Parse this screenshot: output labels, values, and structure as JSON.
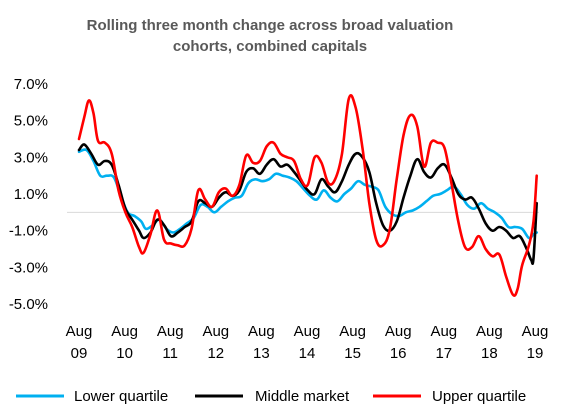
{
  "chart_data": {
    "type": "line",
    "title_lines": [
      "Rolling three month change across broad valuation",
      "cohorts, combined capitals"
    ],
    "xlabel": "",
    "ylabel": "",
    "ylim": [
      -5.0,
      7.0
    ],
    "y_ticks": [
      7.0,
      5.0,
      3.0,
      1.0,
      -1.0,
      -3.0,
      -5.0
    ],
    "y_tick_labels": [
      "7.0%",
      "5.0%",
      "3.0%",
      "1.0%",
      "-1.0%",
      "-3.0%",
      "-5.0%"
    ],
    "x_ticks": [
      {
        "x": 2009.583,
        "top": "Aug",
        "bottom": "09"
      },
      {
        "x": 2010.583,
        "top": "Aug",
        "bottom": "10"
      },
      {
        "x": 2011.583,
        "top": "Aug",
        "bottom": "11"
      },
      {
        "x": 2012.583,
        "top": "Aug",
        "bottom": "12"
      },
      {
        "x": 2013.583,
        "top": "Aug",
        "bottom": "13"
      },
      {
        "x": 2014.583,
        "top": "Aug",
        "bottom": "14"
      },
      {
        "x": 2015.583,
        "top": "Aug",
        "bottom": "15"
      },
      {
        "x": 2016.583,
        "top": "Aug",
        "bottom": "16"
      },
      {
        "x": 2017.583,
        "top": "Aug",
        "bottom": "17"
      },
      {
        "x": 2018.583,
        "top": "Aug",
        "bottom": "18"
      },
      {
        "x": 2019.583,
        "top": "Aug",
        "bottom": "19"
      }
    ],
    "xlim": [
      2009.5,
      2019.62
    ],
    "grid": false,
    "legend_position": "bottom",
    "series": [
      {
        "name": "Lower quartile",
        "color": "#00B0F0",
        "points": [
          [
            2009.583,
            3.3
          ],
          [
            2009.75,
            3.4
          ],
          [
            2009.9,
            2.8
          ],
          [
            2010.05,
            2.0
          ],
          [
            2010.2,
            2.0
          ],
          [
            2010.35,
            1.9
          ],
          [
            2010.5,
            0.9
          ],
          [
            2010.65,
            0.0
          ],
          [
            2010.8,
            -0.2
          ],
          [
            2010.95,
            -0.5
          ],
          [
            2011.05,
            -0.9
          ],
          [
            2011.2,
            -0.7
          ],
          [
            2011.35,
            -0.4
          ],
          [
            2011.5,
            -0.9
          ],
          [
            2011.65,
            -1.1
          ],
          [
            2011.8,
            -0.9
          ],
          [
            2011.95,
            -0.6
          ],
          [
            2012.1,
            -0.3
          ],
          [
            2012.25,
            0.4
          ],
          [
            2012.4,
            0.3
          ],
          [
            2012.55,
            0.0
          ],
          [
            2012.7,
            0.3
          ],
          [
            2012.85,
            0.6
          ],
          [
            2013.0,
            0.8
          ],
          [
            2013.15,
            0.9
          ],
          [
            2013.3,
            1.6
          ],
          [
            2013.45,
            1.8
          ],
          [
            2013.6,
            1.7
          ],
          [
            2013.75,
            1.8
          ],
          [
            2013.9,
            2.1
          ],
          [
            2014.05,
            2.0
          ],
          [
            2014.2,
            1.9
          ],
          [
            2014.35,
            1.7
          ],
          [
            2014.5,
            1.3
          ],
          [
            2014.65,
            0.9
          ],
          [
            2014.8,
            0.7
          ],
          [
            2014.95,
            1.2
          ],
          [
            2015.1,
            0.8
          ],
          [
            2015.25,
            0.6
          ],
          [
            2015.4,
            1.0
          ],
          [
            2015.55,
            1.3
          ],
          [
            2015.7,
            1.7
          ],
          [
            2015.85,
            1.5
          ],
          [
            2016.0,
            1.4
          ],
          [
            2016.15,
            1.2
          ],
          [
            2016.3,
            0.3
          ],
          [
            2016.45,
            -0.1
          ],
          [
            2016.6,
            -0.2
          ],
          [
            2016.75,
            0.0
          ],
          [
            2016.9,
            0.1
          ],
          [
            2017.05,
            0.3
          ],
          [
            2017.2,
            0.6
          ],
          [
            2017.35,
            0.9
          ],
          [
            2017.5,
            1.0
          ],
          [
            2017.65,
            1.2
          ],
          [
            2017.8,
            1.4
          ],
          [
            2017.95,
            1.0
          ],
          [
            2018.1,
            0.4
          ],
          [
            2018.25,
            0.2
          ],
          [
            2018.4,
            0.5
          ],
          [
            2018.55,
            0.2
          ],
          [
            2018.7,
            0.0
          ],
          [
            2018.85,
            -0.3
          ],
          [
            2019.0,
            -0.8
          ],
          [
            2019.15,
            -0.8
          ],
          [
            2019.3,
            -0.9
          ],
          [
            2019.45,
            -1.4
          ],
          [
            2019.55,
            -1.2
          ],
          [
            2019.62,
            -1.1
          ]
        ]
      },
      {
        "name": "Middle market",
        "color": "#000000",
        "points": [
          [
            2009.583,
            3.4
          ],
          [
            2009.7,
            3.7
          ],
          [
            2009.85,
            3.2
          ],
          [
            2010.0,
            2.6
          ],
          [
            2010.15,
            2.8
          ],
          [
            2010.3,
            2.6
          ],
          [
            2010.45,
            1.5
          ],
          [
            2010.6,
            0.2
          ],
          [
            2010.75,
            -0.4
          ],
          [
            2010.9,
            -1.0
          ],
          [
            2011.0,
            -1.4
          ],
          [
            2011.15,
            -1.1
          ],
          [
            2011.3,
            -0.4
          ],
          [
            2011.45,
            -0.7
          ],
          [
            2011.6,
            -1.3
          ],
          [
            2011.75,
            -1.1
          ],
          [
            2011.9,
            -0.8
          ],
          [
            2012.05,
            -0.5
          ],
          [
            2012.2,
            0.6
          ],
          [
            2012.35,
            0.5
          ],
          [
            2012.5,
            0.3
          ],
          [
            2012.65,
            0.8
          ],
          [
            2012.8,
            1.1
          ],
          [
            2012.95,
            0.9
          ],
          [
            2013.1,
            1.2
          ],
          [
            2013.25,
            2.2
          ],
          [
            2013.4,
            2.4
          ],
          [
            2013.55,
            2.1
          ],
          [
            2013.7,
            2.6
          ],
          [
            2013.85,
            2.9
          ],
          [
            2014.0,
            2.5
          ],
          [
            2014.15,
            2.6
          ],
          [
            2014.3,
            2.2
          ],
          [
            2014.45,
            1.7
          ],
          [
            2014.6,
            1.2
          ],
          [
            2014.75,
            1.0
          ],
          [
            2014.9,
            1.8
          ],
          [
            2015.05,
            1.4
          ],
          [
            2015.2,
            1.1
          ],
          [
            2015.35,
            1.7
          ],
          [
            2015.5,
            2.6
          ],
          [
            2015.65,
            3.2
          ],
          [
            2015.8,
            3.0
          ],
          [
            2015.95,
            2.2
          ],
          [
            2016.1,
            0.5
          ],
          [
            2016.25,
            -0.7
          ],
          [
            2016.4,
            -1.0
          ],
          [
            2016.55,
            -0.5
          ],
          [
            2016.7,
            0.8
          ],
          [
            2016.85,
            2.0
          ],
          [
            2017.0,
            2.9
          ],
          [
            2017.15,
            2.2
          ],
          [
            2017.3,
            1.9
          ],
          [
            2017.45,
            2.4
          ],
          [
            2017.6,
            2.6
          ],
          [
            2017.75,
            1.9
          ],
          [
            2017.9,
            1.0
          ],
          [
            2018.05,
            0.7
          ],
          [
            2018.2,
            0.8
          ],
          [
            2018.35,
            0.2
          ],
          [
            2018.5,
            -0.6
          ],
          [
            2018.65,
            -1.0
          ],
          [
            2018.8,
            -0.8
          ],
          [
            2018.95,
            -1.0
          ],
          [
            2019.1,
            -1.4
          ],
          [
            2019.25,
            -1.3
          ],
          [
            2019.4,
            -2.0
          ],
          [
            2019.5,
            -2.6
          ],
          [
            2019.55,
            -2.5
          ],
          [
            2019.62,
            0.5
          ]
        ]
      },
      {
        "name": "Upper quartile",
        "color": "#FF0000",
        "points": [
          [
            2009.583,
            4.0
          ],
          [
            2009.7,
            5.2
          ],
          [
            2009.8,
            6.1
          ],
          [
            2009.9,
            5.4
          ],
          [
            2010.0,
            3.9
          ],
          [
            2010.15,
            3.8
          ],
          [
            2010.3,
            3.2
          ],
          [
            2010.45,
            1.2
          ],
          [
            2010.6,
            0.0
          ],
          [
            2010.75,
            -0.8
          ],
          [
            2010.9,
            -1.9
          ],
          [
            2011.0,
            -2.2
          ],
          [
            2011.15,
            -1.2
          ],
          [
            2011.3,
            0.1
          ],
          [
            2011.45,
            -1.5
          ],
          [
            2011.6,
            -1.7
          ],
          [
            2011.75,
            -1.8
          ],
          [
            2011.9,
            -1.8
          ],
          [
            2012.05,
            -0.9
          ],
          [
            2012.2,
            1.2
          ],
          [
            2012.35,
            0.7
          ],
          [
            2012.5,
            0.3
          ],
          [
            2012.65,
            1.1
          ],
          [
            2012.8,
            1.3
          ],
          [
            2012.95,
            0.9
          ],
          [
            2013.1,
            1.5
          ],
          [
            2013.25,
            3.1
          ],
          [
            2013.4,
            2.7
          ],
          [
            2013.55,
            2.8
          ],
          [
            2013.7,
            3.6
          ],
          [
            2013.85,
            3.8
          ],
          [
            2014.0,
            3.2
          ],
          [
            2014.15,
            3.0
          ],
          [
            2014.3,
            2.8
          ],
          [
            2014.45,
            1.8
          ],
          [
            2014.6,
            1.5
          ],
          [
            2014.75,
            3.0
          ],
          [
            2014.9,
            2.7
          ],
          [
            2015.05,
            1.6
          ],
          [
            2015.2,
            1.8
          ],
          [
            2015.35,
            3.2
          ],
          [
            2015.5,
            6.2
          ],
          [
            2015.65,
            5.7
          ],
          [
            2015.8,
            3.5
          ],
          [
            2015.95,
            0.5
          ],
          [
            2016.1,
            -1.5
          ],
          [
            2016.25,
            -1.8
          ],
          [
            2016.4,
            -0.9
          ],
          [
            2016.55,
            1.8
          ],
          [
            2016.7,
            4.2
          ],
          [
            2016.85,
            5.3
          ],
          [
            2017.0,
            4.7
          ],
          [
            2017.15,
            2.5
          ],
          [
            2017.3,
            3.8
          ],
          [
            2017.45,
            3.8
          ],
          [
            2017.6,
            3.5
          ],
          [
            2017.75,
            1.6
          ],
          [
            2017.9,
            -0.5
          ],
          [
            2018.05,
            -1.9
          ],
          [
            2018.2,
            -1.9
          ],
          [
            2018.35,
            -1.3
          ],
          [
            2018.5,
            -2.0
          ],
          [
            2018.65,
            -2.4
          ],
          [
            2018.8,
            -2.3
          ],
          [
            2018.95,
            -3.5
          ],
          [
            2019.1,
            -4.5
          ],
          [
            2019.2,
            -4.2
          ],
          [
            2019.3,
            -2.9
          ],
          [
            2019.45,
            -1.8
          ],
          [
            2019.55,
            -0.5
          ],
          [
            2019.62,
            2.0
          ]
        ]
      }
    ]
  }
}
